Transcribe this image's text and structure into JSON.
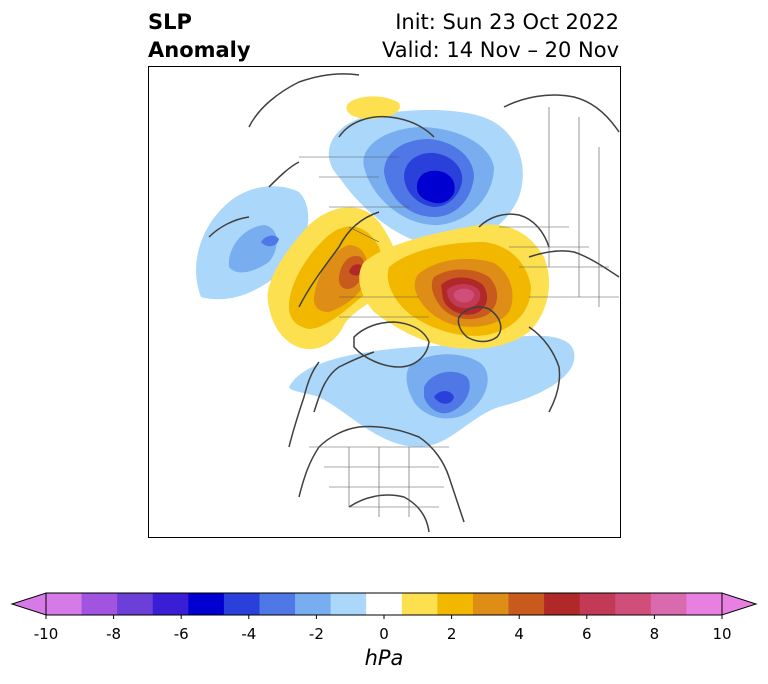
{
  "header": {
    "title_line1": "SLP",
    "title_line2": "Anomaly",
    "init": "Init: Sun 23 Oct 2022",
    "valid": "Valid: 14 Nov – 20 Nov"
  },
  "colorbar": {
    "unit": "hPa",
    "ticks": [
      "-10",
      "-8",
      "-6",
      "-4",
      "-2",
      "0",
      "2",
      "4",
      "6",
      "8",
      "10"
    ],
    "levels": [
      -10,
      -9,
      -8,
      -7,
      -6,
      -5,
      -4,
      -3,
      -2,
      -1,
      1,
      2,
      3,
      4,
      5,
      6,
      7,
      8,
      9,
      10
    ],
    "colors": [
      "#d67ae8",
      "#a154e0",
      "#6c3fd8",
      "#3a1ed6",
      "#0000d0",
      "#2a40db",
      "#4f77e5",
      "#78aef0",
      "#abd8fa",
      "#ffffff",
      "#fde050",
      "#f2b800",
      "#de8d16",
      "#c95a1e",
      "#b02828",
      "#c23a55",
      "#cf4f7a",
      "#da6aae",
      "#e780e0"
    ],
    "under_color": "#d67ae8",
    "over_color": "#e780e0"
  },
  "map": {
    "projection": "north polar stereographic",
    "anomaly_features": [
      {
        "name": "eurasia-low",
        "sign": "negative",
        "peak_hpa": -7
      },
      {
        "name": "northeast-america-low",
        "sign": "negative",
        "peak_hpa": -5
      },
      {
        "name": "north-pacific-low",
        "sign": "negative",
        "peak_hpa": -4
      },
      {
        "name": "siberia-high",
        "sign": "positive",
        "peak_hpa": 6
      },
      {
        "name": "arctic-greenland-high",
        "sign": "positive",
        "peak_hpa": 8
      }
    ]
  }
}
